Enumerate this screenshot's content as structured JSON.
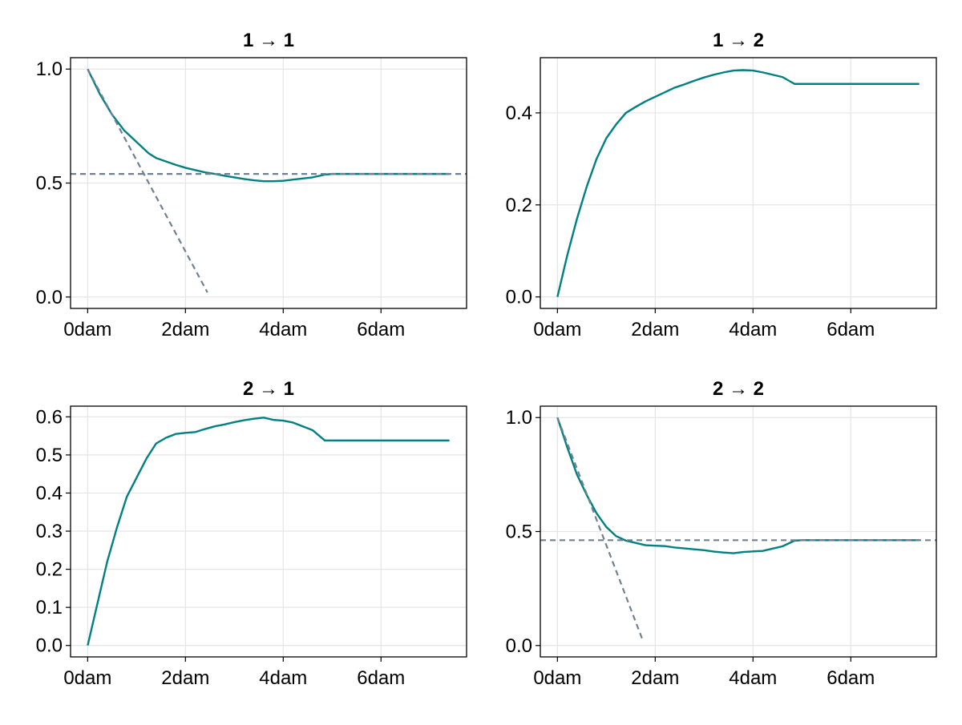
{
  "colors": {
    "line": "#008080",
    "reference": "#708090",
    "grid": "#e5e5e5",
    "frame": "#000000"
  },
  "chart_data": [
    {
      "type": "line",
      "title": "1 → 1",
      "xlabel": "",
      "ylabel": "",
      "xlim": [
        -0.35,
        7.75
      ],
      "ylim": [
        -0.05,
        1.05
      ],
      "xticks": [
        0,
        2,
        4,
        6
      ],
      "xtick_labels": [
        "0dam",
        "2dam",
        "4dam",
        "6dam"
      ],
      "yticks": [
        0,
        0.5,
        1.0
      ],
      "ytick_labels": [
        "0.0",
        "0.5",
        "1.0"
      ],
      "grid": true,
      "series": [
        {
          "style": "solid",
          "x": [
            0,
            0.25,
            0.5,
            0.75,
            1.0,
            1.25,
            1.4,
            1.6,
            1.8,
            2.0,
            2.2,
            2.4,
            2.6,
            2.8,
            3.0,
            3.2,
            3.4,
            3.6,
            3.8,
            4.0,
            4.2,
            4.4,
            4.6,
            4.85,
            5.0,
            5.5,
            6.0,
            6.5,
            7.0,
            7.4
          ],
          "y": [
            1.0,
            0.89,
            0.8,
            0.73,
            0.68,
            0.63,
            0.61,
            0.595,
            0.58,
            0.567,
            0.557,
            0.547,
            0.54,
            0.532,
            0.525,
            0.518,
            0.512,
            0.508,
            0.508,
            0.51,
            0.515,
            0.52,
            0.525,
            0.537,
            0.54,
            0.54,
            0.54,
            0.54,
            0.54,
            0.54
          ]
        },
        {
          "style": "dashed",
          "x": [
            0,
            2.45
          ],
          "y": [
            1.0,
            0.02
          ]
        },
        {
          "style": "dashed",
          "x": [
            -0.35,
            7.75
          ],
          "y": [
            0.54,
            0.54
          ]
        }
      ]
    },
    {
      "type": "line",
      "title": "1 → 2",
      "xlabel": "",
      "ylabel": "",
      "xlim": [
        -0.35,
        7.75
      ],
      "ylim": [
        -0.025,
        0.52
      ],
      "xticks": [
        0,
        2,
        4,
        6
      ],
      "xtick_labels": [
        "0dam",
        "2dam",
        "4dam",
        "6dam"
      ],
      "yticks": [
        0,
        0.2,
        0.4
      ],
      "ytick_labels": [
        "0.0",
        "0.2",
        "0.4"
      ],
      "grid": true,
      "series": [
        {
          "style": "solid",
          "x": [
            0,
            0.2,
            0.4,
            0.6,
            0.8,
            1.0,
            1.2,
            1.4,
            1.6,
            1.8,
            2.0,
            2.2,
            2.4,
            2.6,
            2.8,
            3.0,
            3.2,
            3.4,
            3.6,
            3.8,
            4.0,
            4.2,
            4.4,
            4.6,
            4.85,
            5.0,
            5.5,
            6.0,
            6.5,
            7.0,
            7.4
          ],
          "y": [
            0.0,
            0.09,
            0.17,
            0.24,
            0.3,
            0.345,
            0.375,
            0.4,
            0.413,
            0.425,
            0.435,
            0.445,
            0.455,
            0.462,
            0.47,
            0.477,
            0.483,
            0.488,
            0.492,
            0.493,
            0.492,
            0.488,
            0.483,
            0.478,
            0.463,
            0.463,
            0.463,
            0.463,
            0.463,
            0.463,
            0.463
          ]
        }
      ]
    },
    {
      "type": "line",
      "title": "2 → 1",
      "xlabel": "",
      "ylabel": "",
      "xlim": [
        -0.35,
        7.75
      ],
      "ylim": [
        -0.03,
        0.628
      ],
      "xticks": [
        0,
        2,
        4,
        6
      ],
      "xtick_labels": [
        "0dam",
        "2dam",
        "4dam",
        "6dam"
      ],
      "yticks": [
        0,
        0.1,
        0.2,
        0.3,
        0.4,
        0.5,
        0.6
      ],
      "ytick_labels": [
        "0.0",
        "0.1",
        "0.2",
        "0.3",
        "0.4",
        "0.5",
        "0.6"
      ],
      "grid": true,
      "series": [
        {
          "style": "solid",
          "x": [
            0,
            0.2,
            0.4,
            0.6,
            0.8,
            1.0,
            1.2,
            1.4,
            1.6,
            1.8,
            2.0,
            2.2,
            2.4,
            2.6,
            2.8,
            3.0,
            3.2,
            3.4,
            3.6,
            3.8,
            4.0,
            4.2,
            4.4,
            4.6,
            4.85,
            5.0,
            5.5,
            6.0,
            6.5,
            7.0,
            7.4
          ],
          "y": [
            0.0,
            0.11,
            0.22,
            0.31,
            0.39,
            0.44,
            0.49,
            0.53,
            0.545,
            0.555,
            0.558,
            0.56,
            0.568,
            0.575,
            0.58,
            0.586,
            0.591,
            0.595,
            0.598,
            0.592,
            0.59,
            0.585,
            0.575,
            0.565,
            0.538,
            0.538,
            0.538,
            0.538,
            0.538,
            0.538,
            0.538
          ]
        }
      ]
    },
    {
      "type": "line",
      "title": "2 → 2",
      "xlabel": "",
      "ylabel": "",
      "xlim": [
        -0.35,
        7.75
      ],
      "ylim": [
        -0.05,
        1.05
      ],
      "xticks": [
        0,
        2,
        4,
        6
      ],
      "xtick_labels": [
        "0dam",
        "2dam",
        "4dam",
        "6dam"
      ],
      "yticks": [
        0,
        0.5,
        1.0
      ],
      "ytick_labels": [
        "0.0",
        "0.5",
        "1.0"
      ],
      "grid": true,
      "series": [
        {
          "style": "solid",
          "x": [
            0,
            0.2,
            0.4,
            0.6,
            0.8,
            1.0,
            1.2,
            1.4,
            1.6,
            1.8,
            2.0,
            2.2,
            2.4,
            2.6,
            2.8,
            3.0,
            3.2,
            3.4,
            3.6,
            3.8,
            4.0,
            4.2,
            4.4,
            4.6,
            4.85,
            5.0,
            5.5,
            6.0,
            6.5,
            7.0,
            7.4
          ],
          "y": [
            1.0,
            0.87,
            0.75,
            0.66,
            0.58,
            0.52,
            0.48,
            0.46,
            0.45,
            0.44,
            0.438,
            0.436,
            0.43,
            0.426,
            0.422,
            0.418,
            0.412,
            0.408,
            0.405,
            0.41,
            0.413,
            0.415,
            0.425,
            0.435,
            0.46,
            0.462,
            0.462,
            0.462,
            0.462,
            0.462,
            0.462
          ]
        },
        {
          "style": "dashed",
          "x": [
            0,
            1.75
          ],
          "y": [
            1.0,
            0.02
          ]
        },
        {
          "style": "dashed",
          "x": [
            -0.35,
            7.75
          ],
          "y": [
            0.462,
            0.462
          ]
        }
      ]
    }
  ]
}
